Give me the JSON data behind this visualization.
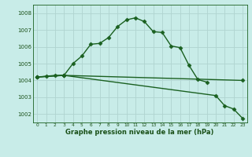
{
  "title": "Graphe pression niveau de la mer (hPa)",
  "background_color": "#c8ece8",
  "grid_color": "#b0d4d0",
  "line_color": "#1a6020",
  "text_color": "#1a5018",
  "ylim": [
    1001.5,
    1008.5
  ],
  "xlim": [
    -0.5,
    23.5
  ],
  "yticks": [
    1002,
    1003,
    1004,
    1005,
    1006,
    1007,
    1008
  ],
  "xticks": [
    0,
    1,
    2,
    3,
    4,
    5,
    6,
    7,
    8,
    9,
    10,
    11,
    12,
    13,
    14,
    15,
    16,
    17,
    18,
    19,
    20,
    21,
    22,
    23
  ],
  "series1_x": [
    0,
    1,
    2,
    3,
    4,
    5,
    6,
    7,
    8,
    9,
    10,
    11,
    12,
    13,
    14,
    15,
    16,
    17,
    18,
    19
  ],
  "series1_y": [
    1004.2,
    1004.25,
    1004.3,
    1004.3,
    1005.0,
    1005.45,
    1006.15,
    1006.2,
    1006.55,
    1007.2,
    1007.6,
    1007.72,
    1007.5,
    1006.9,
    1006.85,
    1006.05,
    1005.95,
    1004.9,
    1004.05,
    1003.9
  ],
  "series2_x": [
    0,
    3,
    20,
    21,
    22,
    23
  ],
  "series2_y": [
    1004.2,
    1004.3,
    1003.1,
    1002.5,
    1002.3,
    1001.75
  ],
  "series3_x": [
    0,
    3,
    23
  ],
  "series3_y": [
    1004.2,
    1004.3,
    1004.0
  ],
  "marker": "D",
  "markersize": 2.5,
  "linewidth": 1.0
}
